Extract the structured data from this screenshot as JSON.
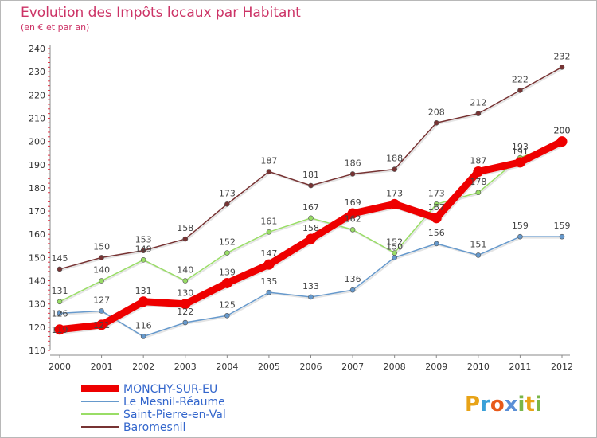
{
  "chart_data": {
    "type": "line",
    "title": "Evolution des Impôts locaux par Habitant",
    "subtitle": "(en € et par an)",
    "xlabel": "",
    "ylabel": "",
    "x": [
      "2000",
      "2001",
      "2002",
      "2003",
      "2004",
      "2005",
      "2006",
      "2007",
      "2008",
      "2009",
      "2010",
      "2011",
      "2012"
    ],
    "ylim": [
      110,
      240
    ],
    "yticks": [
      "110",
      "120",
      "130",
      "140",
      "150",
      "160",
      "170",
      "180",
      "190",
      "200",
      "210",
      "220",
      "230",
      "240"
    ],
    "grid": false,
    "legend_position": "bottom-left",
    "series": [
      {
        "name": "MONCHY-SUR-EU",
        "color": "#ee0000",
        "values": [
          119,
          121,
          131,
          130,
          139,
          147,
          158,
          169,
          173,
          167,
          187,
          191,
          200
        ],
        "labels": [
          "119",
          "121",
          "131",
          "130",
          "139",
          "147",
          "158",
          "169",
          "173",
          "167",
          "187",
          "191",
          "200"
        ]
      },
      {
        "name": "Le Mesnil-Réaume",
        "color": "#6699cc",
        "values": [
          126,
          127,
          116,
          122,
          125,
          135,
          133,
          136,
          150,
          156,
          151,
          159,
          159
        ],
        "labels": [
          "126",
          "127",
          "116",
          "122",
          "125",
          "135",
          "133",
          "136",
          "150",
          "156",
          "151",
          "159",
          "159"
        ]
      },
      {
        "name": "Saint-Pierre-en-Val",
        "color": "#99dd66",
        "values": [
          131,
          140,
          149,
          140,
          152,
          161,
          167,
          162,
          152,
          173,
          178,
          193,
          200
        ],
        "labels": [
          "131",
          "140",
          "149",
          "140",
          "152",
          "161",
          "167",
          "162",
          "152",
          "173",
          "178",
          "193",
          "200"
        ]
      },
      {
        "name": "Baromesnil",
        "color": "#773333",
        "values": [
          145,
          150,
          153,
          158,
          173,
          187,
          181,
          186,
          188,
          208,
          212,
          222,
          232
        ],
        "labels": [
          "145",
          "150",
          "153",
          "158",
          "173",
          "187",
          "181",
          "186",
          "188",
          "208",
          "212",
          "222",
          "232"
        ]
      }
    ]
  },
  "logo": {
    "text": "Proxiti"
  }
}
